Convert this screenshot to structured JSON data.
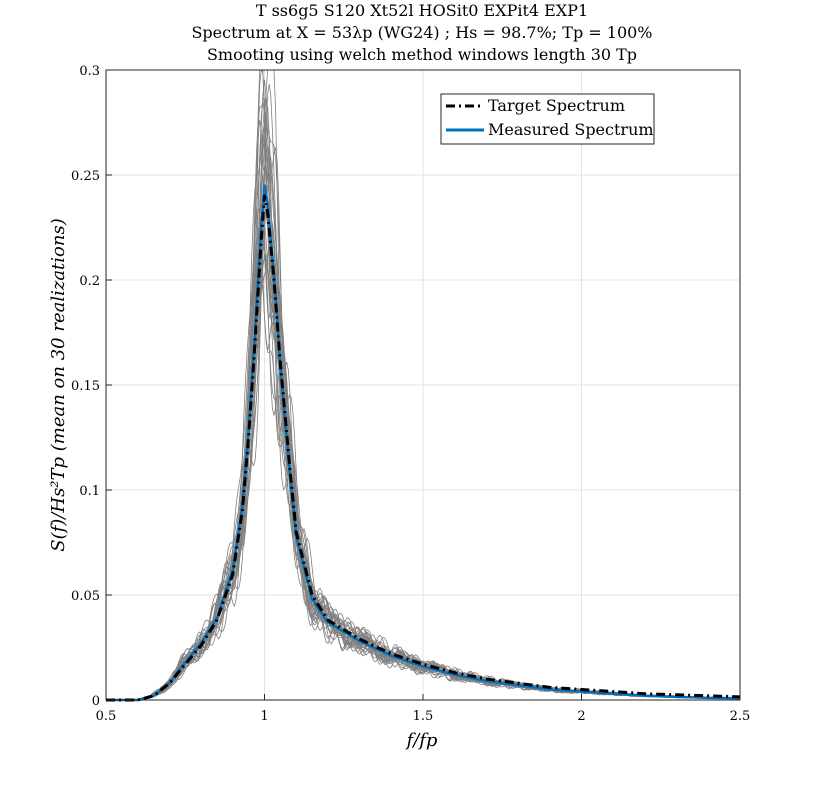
{
  "chart_data": {
    "type": "line",
    "title_lines": [
      "T ss6g5 S120 Xt52l HOSit0 EXPit4 EXP1",
      "Spectrum at X = 53λp (WG24) ; Hs = 98.7%; Tp = 100%",
      "Smooting using welch method windows length 30 Tp"
    ],
    "xlabel": "f/fp",
    "ylabel": "S(f)/Hs²Tp  (mean on 30 realizations)",
    "xlim": [
      0.5,
      2.5
    ],
    "ylim": [
      0,
      0.3
    ],
    "grid": true,
    "legend_position": "top-right",
    "x_ticks": [
      {
        "value": 0.5,
        "label": "0.5"
      },
      {
        "value": 1.0,
        "label": "1"
      },
      {
        "value": 1.5,
        "label": "1.5"
      },
      {
        "value": 2.0,
        "label": "2"
      },
      {
        "value": 2.5,
        "label": "2.5"
      }
    ],
    "y_ticks": [
      {
        "value": 0.0,
        "label": "0"
      },
      {
        "value": 0.05,
        "label": "0.05"
      },
      {
        "value": 0.1,
        "label": "0.1"
      },
      {
        "value": 0.15,
        "label": "0.15"
      },
      {
        "value": 0.2,
        "label": "0.2"
      },
      {
        "value": 0.25,
        "label": "0.25"
      },
      {
        "value": 0.3,
        "label": "0.3"
      }
    ],
    "series": [
      {
        "name": "Target Spectrum",
        "color": "#000000",
        "style": "dash-dot",
        "x": [
          0.5,
          0.6,
          0.65,
          0.7,
          0.75,
          0.8,
          0.85,
          0.9,
          0.93,
          0.95,
          0.97,
          0.99,
          1.0,
          1.01,
          1.03,
          1.05,
          1.08,
          1.1,
          1.15,
          1.2,
          1.3,
          1.4,
          1.5,
          1.6,
          1.7,
          1.8,
          1.9,
          2.0,
          2.1,
          2.2,
          2.3,
          2.4,
          2.5
        ],
        "y": [
          0.0,
          0.0,
          0.002,
          0.008,
          0.017,
          0.026,
          0.038,
          0.06,
          0.09,
          0.125,
          0.17,
          0.22,
          0.24,
          0.232,
          0.2,
          0.16,
          0.11,
          0.08,
          0.05,
          0.038,
          0.029,
          0.022,
          0.017,
          0.013,
          0.01,
          0.008,
          0.006,
          0.005,
          0.004,
          0.003,
          0.0025,
          0.002,
          0.0015
        ]
      },
      {
        "name": "Measured Spectrum",
        "color": "#0072BD",
        "style": "solid",
        "x": [
          0.5,
          0.6,
          0.65,
          0.7,
          0.75,
          0.8,
          0.85,
          0.9,
          0.93,
          0.95,
          0.97,
          0.99,
          1.0,
          1.01,
          1.03,
          1.05,
          1.08,
          1.1,
          1.15,
          1.2,
          1.3,
          1.4,
          1.5,
          1.6,
          1.7,
          1.8,
          1.9,
          2.0,
          2.1,
          2.2,
          2.3,
          2.4,
          2.5
        ],
        "y": [
          0.0,
          0.0,
          0.002,
          0.008,
          0.018,
          0.027,
          0.039,
          0.062,
          0.092,
          0.128,
          0.175,
          0.226,
          0.245,
          0.236,
          0.202,
          0.158,
          0.108,
          0.078,
          0.048,
          0.037,
          0.028,
          0.021,
          0.016,
          0.012,
          0.009,
          0.007,
          0.005,
          0.004,
          0.003,
          0.002,
          0.0015,
          0.001,
          0.0008
        ]
      }
    ],
    "realizations": {
      "count": 30,
      "color": "#808080",
      "description_label": "individual realizations"
    }
  },
  "legend": {
    "target_label": "Target Spectrum",
    "measured_label": "Measured Spectrum"
  }
}
